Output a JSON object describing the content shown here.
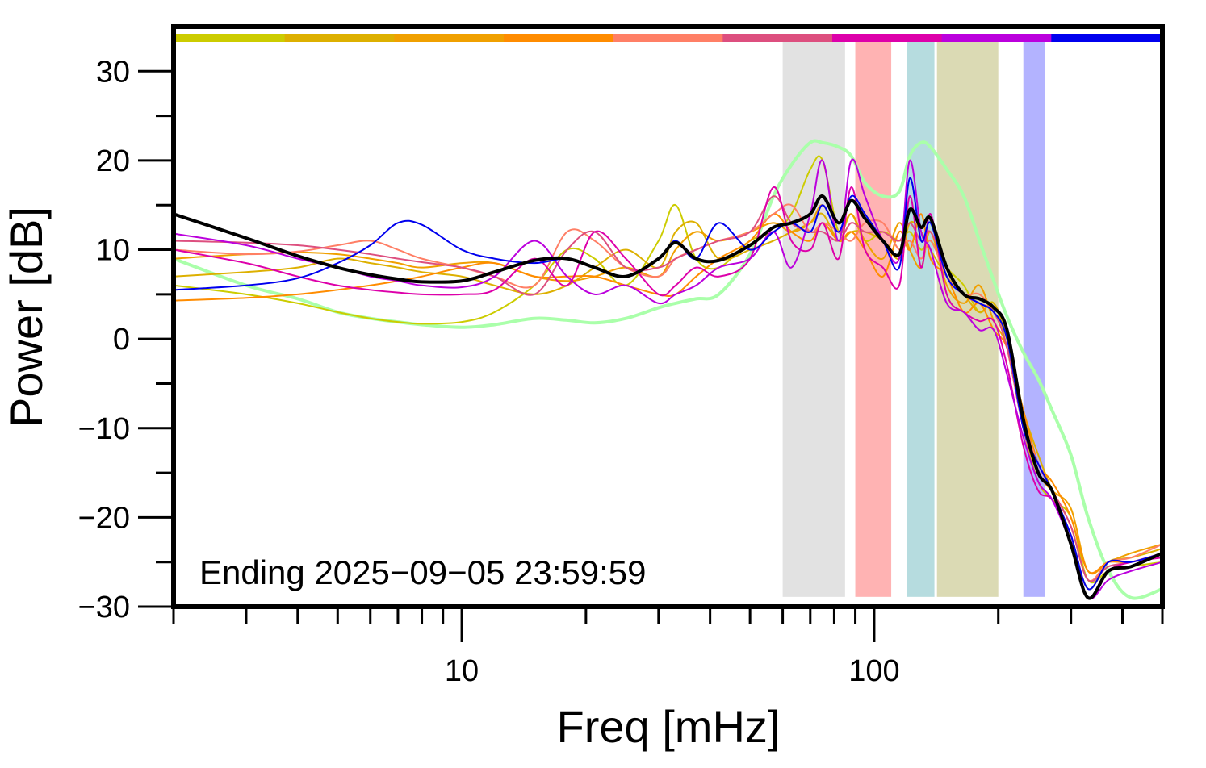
{
  "chart_data": {
    "type": "line",
    "xlabel": "Freq [mHz]",
    "ylabel": "Power [dB]",
    "xscale": "log",
    "xlim": [
      2,
      500
    ],
    "ylim": [
      -30,
      35
    ],
    "yticks": [
      -30,
      -20,
      -10,
      0,
      10,
      20,
      30
    ],
    "ytick_labels": [
      "−30",
      "−20",
      "−10",
      "0",
      "10",
      "20",
      "30"
    ],
    "xticks": [
      10,
      100
    ],
    "xtick_labels": [
      "10",
      "100"
    ],
    "grid": false,
    "annotation": "Ending 2025−09−05 23:59:59",
    "color_bar": [
      "#CCCC00",
      "#DDB000",
      "#F0A000",
      "#FF8C00",
      "#FF7F66",
      "#DD4F7F",
      "#DD00AA",
      "#BB00DD",
      "#0000EE"
    ],
    "bands": [
      {
        "from": 60,
        "to": 85,
        "color": "#E2E2E2"
      },
      {
        "from": 90,
        "to": 110,
        "color": "#FFB3B3"
      },
      {
        "from": 120,
        "to": 140,
        "color": "#B6DCDF"
      },
      {
        "from": 142,
        "to": 200,
        "color": "#DBDAB4"
      },
      {
        "from": 230,
        "to": 260,
        "color": "#B3B3FF"
      }
    ],
    "x": [
      2,
      3,
      4,
      5,
      6,
      7,
      8,
      10,
      12,
      15,
      18,
      21,
      25,
      30,
      33,
      37,
      42,
      50,
      57,
      63,
      70,
      75,
      82,
      88,
      95,
      105,
      115,
      122,
      130,
      137,
      150,
      165,
      180,
      195,
      210,
      230,
      250,
      270,
      300,
      330,
      370,
      420,
      500
    ],
    "series": [
      {
        "color": "#AAFFAA",
        "width": 4,
        "values": [
          9,
          6,
          4.5,
          3,
          2.3,
          1.9,
          1.6,
          1.3,
          1.6,
          2.3,
          2.1,
          1.8,
          2.3,
          3.5,
          4,
          4.5,
          5,
          9.5,
          16,
          19.5,
          22,
          22,
          21.5,
          20.5,
          17.5,
          16,
          16.5,
          20.5,
          22,
          21.5,
          19,
          16,
          11,
          6.5,
          2.5,
          -1.5,
          -4.5,
          -8,
          -13,
          -20,
          -26,
          -29,
          -28
        ]
      },
      {
        "color": "#CCCC00",
        "width": 2,
        "values": [
          6,
          5,
          4,
          3,
          2.3,
          1.9,
          1.7,
          1.9,
          3,
          6,
          10,
          9,
          6,
          11,
          15,
          9,
          8,
          11,
          12,
          14,
          19,
          20,
          12,
          14,
          11,
          12,
          11,
          12,
          10,
          11,
          8,
          6,
          3,
          4,
          -1,
          -10,
          -16,
          -18,
          -20,
          -27,
          -26,
          -25.5,
          -25
        ]
      },
      {
        "color": "#DDB000",
        "width": 2,
        "values": [
          7,
          7.5,
          8,
          9,
          8.5,
          8,
          7.5,
          7,
          6,
          5,
          6,
          8,
          10,
          8,
          12,
          13,
          9,
          10,
          11,
          12,
          13,
          14,
          11,
          12,
          12,
          11,
          9,
          13,
          12,
          10,
          7,
          5,
          3,
          4,
          0,
          -8,
          -13,
          -17,
          -22,
          -28,
          -25,
          -24.5,
          -23.5
        ]
      },
      {
        "color": "#F0A000",
        "width": 2,
        "values": [
          9,
          9.5,
          9.7,
          9.5,
          9,
          8.5,
          8,
          8.5,
          8.5,
          7,
          6.5,
          7,
          8,
          7,
          10,
          12,
          11,
          12,
          13,
          12,
          13,
          15,
          12,
          14,
          11,
          9,
          13,
          10,
          8,
          12,
          6,
          4,
          6,
          2,
          -1,
          -10,
          -15,
          -17,
          -19,
          -26,
          -25,
          -24,
          -23
        ]
      },
      {
        "color": "#FF8C00",
        "width": 2,
        "values": [
          4.3,
          4.6,
          5,
          5.5,
          6,
          6.5,
          7,
          8,
          8.5,
          7,
          7,
          7,
          6,
          5,
          5,
          7,
          9,
          11,
          14,
          12,
          11,
          13,
          11,
          12,
          10,
          7,
          12,
          10,
          14,
          9,
          7,
          3,
          4,
          1,
          -1,
          -8,
          -14,
          -16,
          -20,
          -26,
          -25,
          -25,
          -24
        ]
      },
      {
        "color": "#FF7F66",
        "width": 2,
        "values": [
          10,
          9.5,
          9.8,
          10.5,
          11,
          10,
          9,
          8,
          7,
          6,
          12,
          11,
          8,
          7,
          9,
          10,
          11,
          12,
          14,
          15,
          12,
          13,
          12,
          11,
          13,
          13,
          10,
          11,
          9,
          11,
          7,
          5,
          5,
          3,
          0,
          -9,
          -14,
          -17,
          -21,
          -27,
          -25,
          -24.5,
          -23
        ]
      },
      {
        "color": "#DD4F7F",
        "width": 2,
        "values": [
          11,
          10.8,
          10.5,
          10,
          9.5,
          9,
          8.6,
          8,
          7,
          5,
          10,
          12,
          8,
          8,
          9,
          10,
          11,
          12,
          16,
          13,
          12,
          12,
          11,
          13,
          12,
          12,
          11,
          13,
          11,
          12,
          8,
          5,
          4,
          3,
          -1,
          -10,
          -15,
          -17,
          -21,
          -27,
          -25.5,
          -25,
          -24
        ]
      },
      {
        "color": "#DD00AA",
        "width": 2,
        "values": [
          10,
          8.5,
          7,
          6,
          5.5,
          5.2,
          5,
          5,
          5.5,
          9,
          6,
          12,
          9,
          5,
          6,
          8,
          7,
          9,
          17,
          11,
          10,
          13,
          9,
          17,
          10,
          8,
          6,
          16,
          8,
          14,
          5,
          3,
          2,
          2,
          -3,
          -12,
          -17,
          -18,
          -22,
          -29,
          -26,
          -25,
          -24.5
        ]
      },
      {
        "color": "#BB00DD",
        "width": 2,
        "values": [
          11.8,
          10.5,
          9,
          8,
          7,
          6.5,
          6,
          5.8,
          7,
          11,
          7,
          5,
          6,
          4,
          5,
          6,
          8,
          9,
          12,
          8,
          14,
          20,
          11,
          20,
          16,
          11,
          9,
          20,
          12,
          10,
          4,
          3,
          1,
          1,
          -4,
          -11,
          -16,
          -18,
          -23,
          -29,
          -27,
          -26,
          -25
        ]
      },
      {
        "color": "#0000EE",
        "width": 2,
        "values": [
          5.5,
          6,
          6.8,
          8.5,
          10.5,
          13,
          12.8,
          10,
          9,
          8.5,
          9,
          8,
          7,
          9,
          11,
          9,
          13,
          10,
          12,
          13,
          12,
          15,
          12,
          16,
          14,
          11,
          8,
          18,
          11,
          13,
          7,
          5,
          4,
          3,
          0,
          -10,
          -14,
          -17,
          -22,
          -28,
          -25,
          -25,
          -24
        ]
      },
      {
        "color": "#000000",
        "width": 4,
        "values": [
          14,
          11.3,
          9.3,
          8,
          7.2,
          6.7,
          6.4,
          6.5,
          7.5,
          8.8,
          9,
          8,
          7,
          9,
          10.8,
          9,
          8.8,
          10.5,
          12.5,
          13,
          14,
          16,
          13,
          15.5,
          13.5,
          11,
          9.5,
          14.5,
          12.5,
          13.5,
          8,
          5,
          4.5,
          3.5,
          1,
          -9,
          -15,
          -17,
          -23,
          -29,
          -26,
          -25.5,
          -24
        ]
      }
    ]
  }
}
